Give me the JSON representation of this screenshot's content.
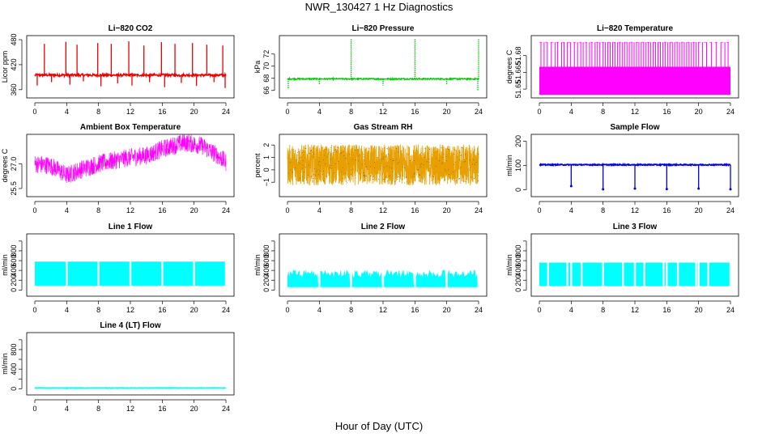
{
  "figure": {
    "title": "NWR_130427  1 Hz Diagnostics",
    "xlabel": "Hour of Day (UTC)"
  },
  "chart_data": [
    {
      "type": "line",
      "title": "Li−820 CO2",
      "xlabel": "",
      "ylabel": "Licor ppm",
      "xlim": [
        0,
        24
      ],
      "ylim": [
        348,
        482
      ],
      "xticks": [
        0,
        4,
        8,
        12,
        16,
        20,
        24
      ],
      "yticks": [
        360,
        420,
        480
      ],
      "ytick_labels": [
        "360",
        "420",
        "480"
      ],
      "color": "#ee0000",
      "baseline": 395,
      "noise": 3,
      "spikes": [
        [
          0.3,
          370
        ],
        [
          1.2,
          470
        ],
        [
          2.1,
          378
        ],
        [
          3.9,
          475
        ],
        [
          4.4,
          372
        ],
        [
          5.3,
          468
        ],
        [
          6.1,
          380
        ],
        [
          7.9,
          472
        ],
        [
          8.3,
          368
        ],
        [
          9.6,
          470
        ],
        [
          10.4,
          375
        ],
        [
          11.8,
          476
        ],
        [
          12.2,
          370
        ],
        [
          13.7,
          466
        ],
        [
          14.4,
          378
        ],
        [
          15.9,
          474
        ],
        [
          16.3,
          366
        ],
        [
          17.6,
          470
        ],
        [
          18.4,
          376
        ],
        [
          19.8,
          472
        ],
        [
          20.3,
          369
        ],
        [
          21.6,
          468
        ],
        [
          22.5,
          378
        ],
        [
          23.6,
          466
        ],
        [
          23.9,
          364
        ]
      ]
    },
    {
      "type": "line",
      "title": "Li−820 Pressure",
      "xlabel": "",
      "ylabel": "kPa",
      "xlim": [
        0,
        24
      ],
      "ylim": [
        65.3,
        74.5
      ],
      "xticks": [
        0,
        4,
        8,
        12,
        16,
        20,
        24
      ],
      "yticks": [
        66,
        68,
        70,
        72
      ],
      "ytick_labels": [
        "66",
        "68",
        "70",
        "72"
      ],
      "color": "#00cc00",
      "baseline": 67.9,
      "noise": 0.1,
      "spikes": [
        [
          0.1,
          66.2
        ],
        [
          4.0,
          67.0
        ],
        [
          8.0,
          74.5
        ],
        [
          12.0,
          66.8
        ],
        [
          16.0,
          74.5
        ],
        [
          20.0,
          66.9
        ],
        [
          24.0,
          74.5
        ],
        [
          23.9,
          66.0
        ]
      ]
    },
    {
      "type": "area",
      "title": "Li−820 Temperature",
      "xlabel": "",
      "ylabel": "degrees C",
      "xlim": [
        0,
        24
      ],
      "ylim": [
        51.645,
        51.695
      ],
      "xticks": [
        0,
        4,
        8,
        12,
        16,
        20,
        24
      ],
      "yticks": [
        51.65,
        51.665,
        51.68
      ],
      "ytick_labels": [
        "51.65",
        "51.665",
        "51.68"
      ],
      "color": "#ff00ff",
      "band": [
        51.645,
        51.67
      ],
      "upper_level": 51.692,
      "spike_positions": [
        0.2,
        0.6,
        1.0,
        1.5,
        2.0,
        2.3,
        2.8,
        3.1,
        3.5,
        3.9,
        4.4,
        4.8,
        5.2,
        5.5,
        5.9,
        6.3,
        6.6,
        7.0,
        7.3,
        7.6,
        8.0,
        8.3,
        8.6,
        8.9,
        9.2,
        9.5,
        9.8,
        10.1,
        10.4,
        10.7,
        11.0,
        11.3,
        11.6,
        11.9,
        12.2,
        12.5,
        12.8,
        13.1,
        13.4,
        13.7,
        14.0,
        14.3,
        14.6,
        14.9,
        15.2,
        15.5,
        15.8,
        16.1,
        16.4,
        16.7,
        17.0,
        17.3,
        17.6,
        17.9,
        18.2,
        18.5,
        18.8,
        19.1,
        19.4,
        19.7,
        20.0,
        20.5,
        21.0,
        21.6,
        22.2,
        22.8,
        23.3,
        23.7
      ]
    },
    {
      "type": "line",
      "title": "Ambient Box Temperature",
      "xlabel": "",
      "ylabel": "degrees C",
      "xlim": [
        0,
        24
      ],
      "ylim": [
        25.2,
        28.6
      ],
      "xticks": [
        0,
        4,
        8,
        12,
        16,
        20,
        24
      ],
      "yticks": [
        25.5,
        27.0
      ],
      "ytick_labels": [
        "25.5",
        "27.0"
      ],
      "color": "#ff00ff",
      "trend": [
        [
          0,
          27.0
        ],
        [
          2,
          26.9
        ],
        [
          4,
          26.3
        ],
        [
          6,
          26.7
        ],
        [
          8,
          27.0
        ],
        [
          10,
          27.2
        ],
        [
          12,
          27.4
        ],
        [
          14,
          27.5
        ],
        [
          16,
          27.9
        ],
        [
          18,
          28.2
        ],
        [
          19,
          28.3
        ],
        [
          21,
          28.1
        ],
        [
          23,
          27.5
        ],
        [
          24,
          27.1
        ]
      ],
      "noise": 0.7
    },
    {
      "type": "scatter",
      "title": "Gas Stream RH",
      "xlabel": "",
      "ylabel": "percent",
      "xlim": [
        0,
        24
      ],
      "ylim": [
        -1.9,
        2.6
      ],
      "xticks": [
        0,
        4,
        8,
        12,
        16,
        20,
        24
      ],
      "yticks": [
        -1,
        0,
        1,
        2
      ],
      "ytick_labels": [
        "−1",
        "0",
        "1",
        "2"
      ],
      "color": "#e8a000",
      "marker_color": "#555555",
      "center": 0.4,
      "noise": 2.2
    },
    {
      "type": "line",
      "title": "Sample Flow",
      "xlabel": "",
      "ylabel": "ml/min",
      "xlim": [
        0,
        24
      ],
      "ylim": [
        -15,
        215
      ],
      "xticks": [
        0,
        4,
        8,
        12,
        16,
        20,
        24
      ],
      "yticks": [
        0,
        100,
        200
      ],
      "ytick_labels": [
        "0",
        "100",
        "200"
      ],
      "color": "#0000ee",
      "baseline": 103,
      "noise": 2,
      "dips": [
        [
          4.0,
          15
        ],
        [
          8.0,
          2
        ],
        [
          12.0,
          5
        ],
        [
          16.0,
          3
        ],
        [
          20.0,
          5
        ],
        [
          24.0,
          2
        ]
      ]
    },
    {
      "type": "area",
      "title": "Line 1 Flow",
      "xlabel": "",
      "ylabel": "ml/min",
      "xlim": [
        0,
        24
      ],
      "ylim": [
        -60,
        1080
      ],
      "xticks": [
        0,
        4,
        8,
        12,
        16,
        20,
        24
      ],
      "yticks": [
        0,
        200,
        400,
        600,
        800,
        1000
      ],
      "ytick_labels": [
        "0",
        "200",
        "400",
        "600",
        "800",
        ""
      ],
      "color": "#00ffff",
      "band": [
        90,
        580
      ],
      "gaps": [
        4.0,
        8.0,
        12.0,
        16.0,
        20.0,
        24.0
      ]
    },
    {
      "type": "area",
      "title": "Line 2 Flow",
      "xlabel": "",
      "ylabel": "ml/min",
      "xlim": [
        0,
        24
      ],
      "ylim": [
        -60,
        1080
      ],
      "xticks": [
        0,
        4,
        8,
        12,
        16,
        20,
        24
      ],
      "yticks": [
        0,
        200,
        400,
        600,
        800,
        1000
      ],
      "ytick_labels": [
        "0",
        "200",
        "400",
        "600",
        "800",
        ""
      ],
      "color": "#00ffff",
      "band": [
        60,
        420
      ],
      "jagged": true,
      "gaps": [
        4.0,
        8.0,
        12.0,
        16.0,
        20.0,
        24.0
      ]
    },
    {
      "type": "area",
      "title": "Line 3 Flow",
      "xlabel": "",
      "ylabel": "ml/min",
      "xlim": [
        0,
        24
      ],
      "ylim": [
        -60,
        1080
      ],
      "xticks": [
        0,
        4,
        8,
        12,
        16,
        20,
        24
      ],
      "yticks": [
        0,
        200,
        400,
        600,
        800,
        1000
      ],
      "ytick_labels": [
        "0",
        "200",
        "400",
        "600",
        "800",
        ""
      ],
      "color": "#00ffff",
      "band": [
        80,
        560
      ],
      "gaps": [
        1.1,
        3.5,
        4.0,
        5.3,
        8.0,
        10.5,
        12.0,
        13.2,
        15.6,
        16.0,
        17.4,
        19.7,
        20.0,
        21.2,
        24.0
      ]
    },
    {
      "type": "line",
      "title": "Line 4 (LT) Flow",
      "xlabel": "",
      "ylabel": "ml/min",
      "xlim": [
        0,
        24
      ],
      "ylim": [
        -60,
        1080
      ],
      "xticks": [
        0,
        4,
        8,
        12,
        16,
        20,
        24
      ],
      "yticks": [
        0,
        200,
        400,
        600,
        800,
        1000
      ],
      "ytick_labels": [
        "0",
        "",
        "400",
        "",
        "800",
        ""
      ],
      "color": "#00ffff",
      "baseline": 15,
      "noise": 4
    }
  ]
}
